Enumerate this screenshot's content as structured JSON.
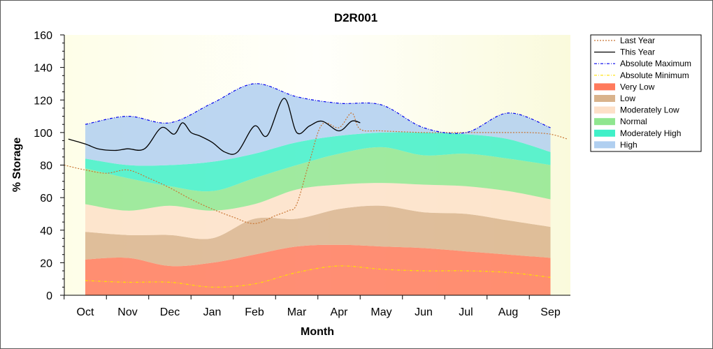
{
  "chart_data": {
    "type": "area",
    "title": "D2R001",
    "xlabel": "Month",
    "ylabel": "% Storage",
    "ylim": [
      0,
      160
    ],
    "yticks": [
      0,
      20,
      40,
      60,
      80,
      100,
      120,
      140,
      160
    ],
    "categories": [
      "Oct",
      "Nov",
      "Dec",
      "Jan",
      "Feb",
      "Mar",
      "Apr",
      "May",
      "Jun",
      "Jul",
      "Aug",
      "Sep"
    ],
    "legend_position": "right",
    "grid": false,
    "bands": [
      {
        "name": "Very Low",
        "color": "#ff7a5c",
        "lower": [
          0,
          0,
          0,
          0,
          0,
          0,
          0,
          0,
          0,
          0,
          0,
          0
        ],
        "upper": [
          22,
          23,
          18,
          20,
          25,
          30,
          31,
          30,
          29,
          27,
          25,
          23
        ]
      },
      {
        "name": "Low",
        "color": "#d9b38c",
        "lower": [
          22,
          23,
          18,
          20,
          25,
          30,
          31,
          30,
          29,
          27,
          25,
          23
        ],
        "upper": [
          39,
          37,
          37,
          35,
          47,
          47,
          53,
          55,
          51,
          50,
          46,
          42
        ]
      },
      {
        "name": "Moderately Low",
        "color": "#fde0c8",
        "lower": [
          39,
          37,
          37,
          35,
          47,
          47,
          53,
          55,
          51,
          50,
          46,
          42
        ],
        "upper": [
          56,
          52,
          55,
          52,
          56,
          65,
          68,
          69,
          68,
          67,
          64,
          59
        ]
      },
      {
        "name": "Normal",
        "color": "#8fe68f",
        "lower": [
          56,
          52,
          55,
          52,
          56,
          65,
          68,
          69,
          68,
          67,
          64,
          59
        ],
        "upper": [
          78,
          72,
          67,
          64,
          72,
          80,
          87,
          91,
          86,
          87,
          84,
          80
        ]
      },
      {
        "name": "Moderately High",
        "color": "#40f0c8",
        "lower": [
          78,
          72,
          67,
          64,
          72,
          80,
          87,
          91,
          86,
          87,
          84,
          80
        ],
        "upper": [
          84,
          80,
          80,
          82,
          87,
          94,
          98,
          100,
          100,
          99,
          96,
          88
        ]
      },
      {
        "name": "High",
        "color": "#b0cff0",
        "lower": [
          84,
          80,
          80,
          82,
          87,
          94,
          98,
          100,
          100,
          99,
          96,
          88
        ],
        "upper": [
          105,
          110,
          106,
          118,
          130,
          122,
          118,
          117,
          103,
          100,
          112,
          103
        ]
      }
    ],
    "series": [
      {
        "name": "Last Year",
        "color": "#c87533",
        "style": "dotted",
        "x": [
          -0.5,
          0.0,
          0.5,
          1.0,
          1.5,
          2.0,
          2.5,
          3.0,
          3.5,
          4.0,
          4.5,
          4.8,
          5.0,
          5.3,
          5.6,
          6.0,
          6.3,
          6.5,
          7.0,
          8.0,
          8.5,
          9.0,
          10.0,
          10.5,
          11.0,
          11.4
        ],
        "y": [
          80,
          77,
          75,
          77,
          72,
          66,
          59,
          53,
          48,
          44,
          49,
          52,
          56,
          82,
          105,
          103,
          112,
          102,
          101,
          100,
          100,
          100,
          100,
          100,
          99,
          96
        ]
      },
      {
        "name": "This Year",
        "color": "#000000",
        "style": "solid",
        "x": [
          -0.4,
          0.0,
          0.3,
          0.7,
          1.0,
          1.4,
          1.8,
          2.1,
          2.3,
          2.5,
          2.7,
          3.0,
          3.3,
          3.6,
          4.0,
          4.3,
          4.7,
          5.0,
          5.3,
          5.6,
          6.0,
          6.3,
          6.5
        ],
        "y": [
          96,
          93,
          90,
          89,
          90,
          90,
          103,
          99,
          106,
          100,
          98,
          94,
          88,
          88,
          104,
          98,
          121,
          100,
          104,
          107,
          101,
          107,
          106
        ]
      },
      {
        "name": "Absolute Maximum",
        "color": "#0000ee",
        "style": "dashdot",
        "x": [
          0,
          1,
          2,
          3,
          4,
          5,
          6,
          7,
          8,
          9,
          10,
          11
        ],
        "y": [
          105,
          110,
          106,
          118,
          130,
          122,
          118,
          117,
          103,
          100,
          112,
          103
        ]
      },
      {
        "name": "Absolute Minimum",
        "color": "#ffe000",
        "style": "dashdot",
        "x": [
          0,
          1,
          2,
          3,
          4,
          5,
          6,
          7,
          8,
          9,
          10,
          11
        ],
        "y": [
          9,
          8,
          8,
          5,
          7,
          14,
          18,
          16,
          15,
          15,
          14,
          11
        ]
      }
    ],
    "legend": [
      {
        "label": "Last Year",
        "kind": "line",
        "color": "#c87533",
        "style": "dotted"
      },
      {
        "label": "This Year",
        "kind": "line",
        "color": "#000000",
        "style": "solid"
      },
      {
        "label": "Absolute Maximum",
        "kind": "line",
        "color": "#0000ee",
        "style": "dashdot"
      },
      {
        "label": "Absolute Minimum",
        "kind": "line",
        "color": "#ffe000",
        "style": "dashdot"
      },
      {
        "label": "Very Low",
        "kind": "band",
        "color": "#ff7a5c"
      },
      {
        "label": "Low",
        "kind": "band",
        "color": "#d9b38c"
      },
      {
        "label": "Moderately Low",
        "kind": "band",
        "color": "#fde0c8"
      },
      {
        "label": "Normal",
        "kind": "band",
        "color": "#8fe68f"
      },
      {
        "label": "Moderately High",
        "kind": "band",
        "color": "#40f0c8"
      },
      {
        "label": "High",
        "kind": "band",
        "color": "#b0cff0"
      }
    ]
  }
}
